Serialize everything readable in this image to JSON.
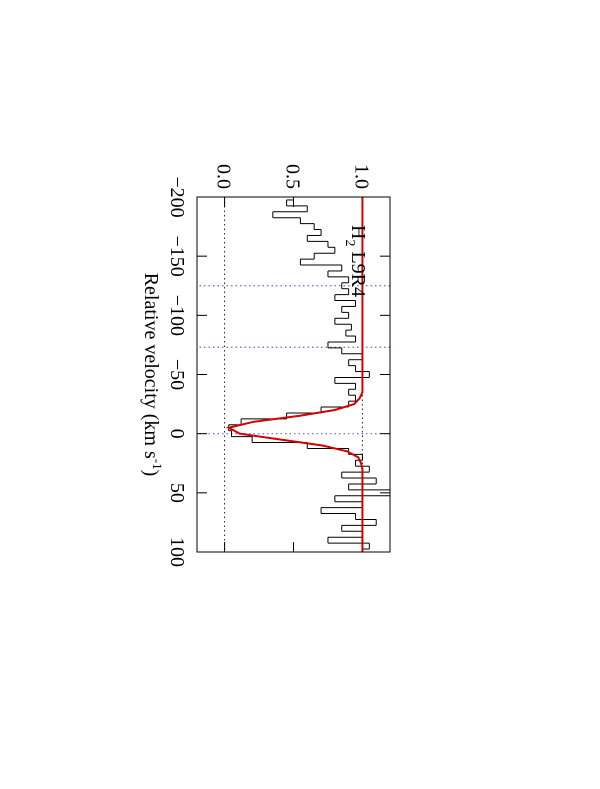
{
  "chart_data": {
    "type": "step",
    "xlabel": {
      "text": "Relative velocity (km s",
      "superscript": "-1",
      "close": ")"
    },
    "annotation": {
      "species": "H",
      "subscript": "2",
      "transition": "L9R4"
    },
    "x": [
      -200,
      -195,
      -190,
      -185,
      -180,
      -175,
      -170,
      -165,
      -160,
      -155,
      -150,
      -145,
      -140,
      -135,
      -130,
      -125,
      -120,
      -115,
      -110,
      -105,
      -100,
      -95,
      -90,
      -85,
      -80,
      -75,
      -70,
      -65,
      -60,
      -55,
      -50,
      -45,
      -40,
      -35,
      -30,
      -25,
      -20,
      -15,
      -10,
      -5,
      0,
      5,
      10,
      15,
      20,
      25,
      30,
      35,
      40,
      45,
      50,
      55,
      60,
      65,
      70,
      75,
      80,
      85,
      90,
      95,
      100
    ],
    "series": [
      {
        "name": "Data",
        "color": "#000000",
        "values": [
          0.5,
          0.45,
          0.6,
          0.35,
          0.55,
          0.65,
          0.7,
          0.6,
          0.75,
          0.8,
          0.65,
          0.55,
          0.85,
          0.75,
          0.9,
          0.85,
          0.9,
          0.8,
          0.95,
          0.85,
          0.9,
          0.8,
          0.92,
          0.88,
          0.95,
          0.75,
          0.85,
          1.0,
          0.9,
          0.95,
          1.05,
          0.8,
          0.95,
          0.9,
          0.95,
          0.9,
          0.7,
          0.45,
          0.12,
          0.03,
          0.05,
          0.2,
          0.6,
          0.9,
          1.0,
          0.95,
          1.05,
          0.85,
          1.1,
          0.9,
          1.2,
          0.8,
          1.0,
          0.7,
          0.95,
          1.1,
          0.85,
          1.0,
          0.75,
          1.05,
          1.0
        ]
      },
      {
        "name": "Model",
        "color": "#d40000",
        "values": [
          1,
          1,
          1,
          1,
          1,
          1,
          1,
          1,
          1,
          1,
          1,
          1,
          1,
          1,
          1,
          1,
          1,
          1,
          1,
          1,
          1,
          1,
          1,
          1,
          1,
          1,
          1,
          1,
          1,
          1,
          1,
          1,
          1,
          1,
          0.98,
          0.94,
          0.8,
          0.54,
          0.21,
          0.03,
          0.11,
          0.41,
          0.71,
          0.89,
          0.97,
          0.99,
          1,
          1,
          1,
          1,
          1,
          1,
          1,
          1,
          1,
          1,
          1,
          1,
          1,
          1,
          1
        ]
      }
    ],
    "xlim": [
      -200,
      100
    ],
    "ylim": [
      -0.2,
      1.2
    ],
    "xticks": [
      {
        "value": -200,
        "label": "−200"
      },
      {
        "value": -150,
        "label": "−150"
      },
      {
        "value": -100,
        "label": "−100"
      },
      {
        "value": -50,
        "label": "−50"
      },
      0,
      50,
      100
    ],
    "yticks": [
      {
        "value": 0,
        "label": "0.0"
      },
      0.5,
      {
        "value": 1,
        "label": "1.0"
      }
    ],
    "vlines": [
      -125,
      -73,
      0
    ],
    "hlines": [
      0,
      1
    ],
    "rotation": 90
  }
}
